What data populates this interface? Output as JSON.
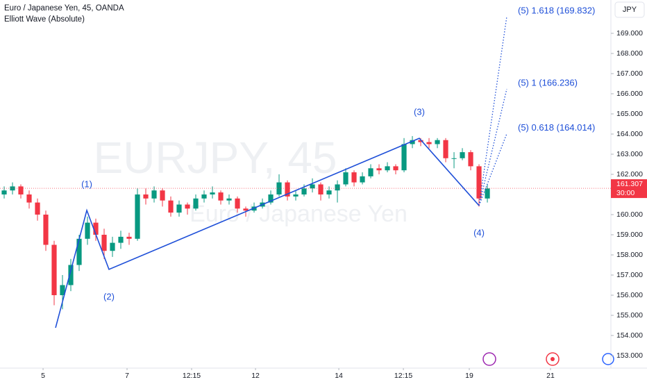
{
  "chart_data": {
    "type": "candlestick",
    "title": "Euro / Japanese Yen, 45, OANDA",
    "subtitle": "Elliott Wave (Absolute)",
    "watermark": "EURJPY, 45",
    "watermark_subtitle": "Euro / Japanese Yen",
    "currency": "JPY",
    "up_color": "#089981",
    "down_color": "#f23645",
    "wave_color": "#1e4fd8",
    "xlim": [
      -0.5,
      72.83
    ],
    "ylim": [
      152.379,
      170.655
    ],
    "xticks": [
      {
        "value": 4.67,
        "label": "5"
      },
      {
        "value": 14.75,
        "label": "7"
      },
      {
        "value": 22.5,
        "label": "12:15"
      },
      {
        "value": 30.17,
        "label": "12"
      },
      {
        "value": 40.17,
        "label": "14"
      },
      {
        "value": 47.92,
        "label": "12:15"
      },
      {
        "value": 55.83,
        "label": "19"
      },
      {
        "value": 65.58,
        "label": "21"
      }
    ],
    "yticks": [
      {
        "value": 153,
        "label": "153.000"
      },
      {
        "value": 154,
        "label": "154.000"
      },
      {
        "value": 155,
        "label": "155.000"
      },
      {
        "value": 156,
        "label": "156.000"
      },
      {
        "value": 157,
        "label": "157.000"
      },
      {
        "value": 158,
        "label": "158.000"
      },
      {
        "value": 159,
        "label": "159.000"
      },
      {
        "value": 160,
        "label": "160.000"
      },
      {
        "value": 161,
        "label": "161.000"
      },
      {
        "value": 162,
        "label": "162.000"
      },
      {
        "value": 163,
        "label": "163.000"
      },
      {
        "value": 164,
        "label": "164.000"
      },
      {
        "value": 165,
        "label": "165.000"
      },
      {
        "value": 166,
        "label": "166.000"
      },
      {
        "value": 167,
        "label": "167.000"
      },
      {
        "value": 168,
        "label": "168.000"
      },
      {
        "value": 169,
        "label": "169.000"
      }
    ],
    "x": [
      0,
      1,
      2,
      3,
      4,
      5,
      6,
      7,
      8,
      9,
      10,
      11,
      12,
      13,
      14,
      15,
      16,
      17,
      18,
      19,
      20,
      21,
      22,
      23,
      24,
      25,
      26,
      27,
      28,
      29,
      30,
      31,
      32,
      33,
      34,
      35,
      36,
      37,
      38,
      39,
      40,
      41,
      42,
      43,
      44,
      45,
      46,
      47,
      48,
      49,
      50,
      51,
      52,
      53,
      54,
      55,
      56,
      57,
      58
    ],
    "candles": [
      [
        161.0,
        161.4,
        160.8,
        161.2
      ],
      [
        161.2,
        161.6,
        161.0,
        161.4
      ],
      [
        161.4,
        161.5,
        160.8,
        161.0
      ],
      [
        161.0,
        161.2,
        160.3,
        160.6
      ],
      [
        160.6,
        160.8,
        159.7,
        160.0
      ],
      [
        160.0,
        160.2,
        158.2,
        158.5
      ],
      [
        158.5,
        158.7,
        155.5,
        156.0
      ],
      [
        156.0,
        157.0,
        155.3,
        156.5
      ],
      [
        156.5,
        157.8,
        156.2,
        157.5
      ],
      [
        157.5,
        159.0,
        157.2,
        158.8
      ],
      [
        158.8,
        159.9,
        158.5,
        159.6
      ],
      [
        159.6,
        159.8,
        158.7,
        159.0
      ],
      [
        159.0,
        159.3,
        157.8,
        158.2
      ],
      [
        158.2,
        158.9,
        157.9,
        158.6
      ],
      [
        158.6,
        159.2,
        158.3,
        158.9
      ],
      [
        158.9,
        159.1,
        158.5,
        158.8
      ],
      [
        158.8,
        161.3,
        158.7,
        161.0
      ],
      [
        161.0,
        161.3,
        160.5,
        160.8
      ],
      [
        160.8,
        161.4,
        160.6,
        161.2
      ],
      [
        161.2,
        161.3,
        160.4,
        160.7
      ],
      [
        160.7,
        160.9,
        159.9,
        160.1
      ],
      [
        160.1,
        160.7,
        159.9,
        160.5
      ],
      [
        160.5,
        160.6,
        160.0,
        160.3
      ],
      [
        160.3,
        161.0,
        160.2,
        160.8
      ],
      [
        160.8,
        161.2,
        160.6,
        161.0
      ],
      [
        161.0,
        161.4,
        160.8,
        161.1
      ],
      [
        161.1,
        161.2,
        160.5,
        160.7
      ],
      [
        160.7,
        161.0,
        160.5,
        160.8
      ],
      [
        160.8,
        160.9,
        160.1,
        160.3
      ],
      [
        160.3,
        160.4,
        159.9,
        160.2
      ],
      [
        160.2,
        160.6,
        160.1,
        160.4
      ],
      [
        160.4,
        160.8,
        160.3,
        160.6
      ],
      [
        160.6,
        161.2,
        160.5,
        161.0
      ],
      [
        161.0,
        162.0,
        160.9,
        161.6
      ],
      [
        161.6,
        161.7,
        160.7,
        160.9
      ],
      [
        160.9,
        161.2,
        160.7,
        161.0
      ],
      [
        161.0,
        161.5,
        160.9,
        161.3
      ],
      [
        161.3,
        161.8,
        161.1,
        161.5
      ],
      [
        161.5,
        161.6,
        160.7,
        161.0
      ],
      [
        161.0,
        161.4,
        160.8,
        161.2
      ],
      [
        161.2,
        161.7,
        160.6,
        161.5
      ],
      [
        161.5,
        162.3,
        161.4,
        162.1
      ],
      [
        162.1,
        162.2,
        161.4,
        161.6
      ],
      [
        161.6,
        162.1,
        161.5,
        161.9
      ],
      [
        161.9,
        162.5,
        161.8,
        162.3
      ],
      [
        162.3,
        162.5,
        162.0,
        162.2
      ],
      [
        162.2,
        162.6,
        162.1,
        162.4
      ],
      [
        162.4,
        162.5,
        162.0,
        162.2
      ],
      [
        162.2,
        163.8,
        162.1,
        163.5
      ],
      [
        163.5,
        163.9,
        163.3,
        163.7
      ],
      [
        163.7,
        163.8,
        163.4,
        163.6
      ],
      [
        163.6,
        163.8,
        163.3,
        163.5
      ],
      [
        163.5,
        163.8,
        163.3,
        163.7
      ],
      [
        163.7,
        163.8,
        162.6,
        162.8
      ],
      [
        162.8,
        163.1,
        162.3,
        162.8
      ],
      [
        162.8,
        163.3,
        162.7,
        163.1
      ],
      [
        163.1,
        163.2,
        162.2,
        162.4
      ],
      [
        162.4,
        162.5,
        160.4,
        160.8
      ],
      [
        160.8,
        161.5,
        160.6,
        161.3
      ]
    ],
    "wave": [
      {
        "x": 6.17,
        "y": 154.38
      },
      {
        "label": "(1)",
        "x": 9.92,
        "y": 160.21
      },
      {
        "label": "(2)",
        "x": 12.58,
        "y": 157.28
      },
      {
        "label": "(3)",
        "x": 49.83,
        "y": 163.79
      },
      {
        "label": "(4)",
        "x": 57.0,
        "y": 160.45
      }
    ],
    "projections": [
      {
        "label": "(5) 0.618 (164.014)",
        "x": 60.33,
        "y": 164.014
      },
      {
        "label": "(5) 1 (166.236)",
        "x": 60.33,
        "y": 166.236
      },
      {
        "label": "(5) 1.618 (169.832)",
        "x": 60.33,
        "y": 169.832
      }
    ],
    "last_price": 161.307,
    "countdown": "30:00"
  }
}
